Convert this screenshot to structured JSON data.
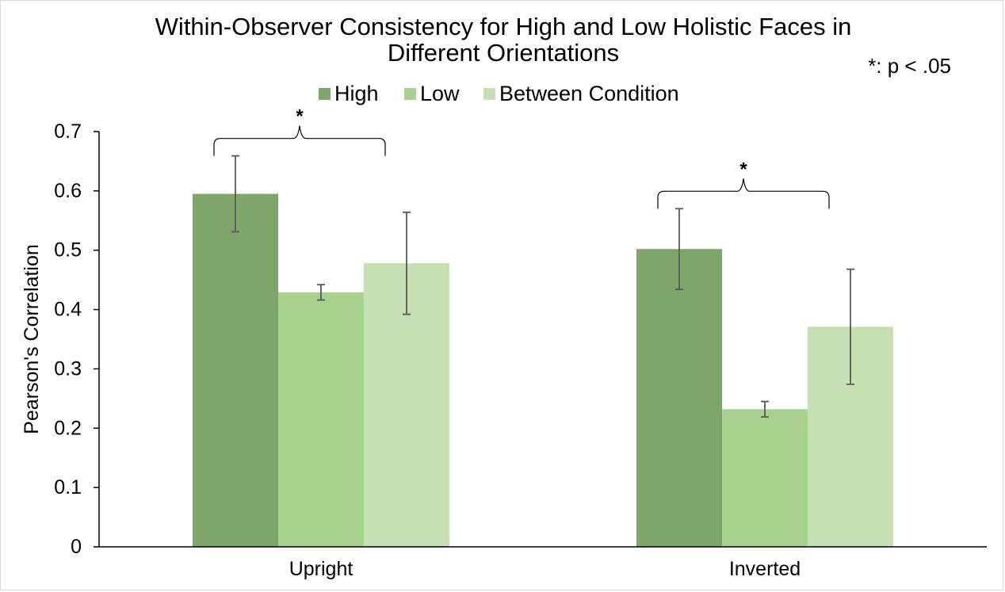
{
  "chart_data": {
    "type": "bar",
    "title_lines": [
      "Within-Observer Consistency for High and Low Holistic Faces in",
      "Different Orientations"
    ],
    "significance_note": "*: p < .05",
    "significance_marker": "*",
    "ylabel": "Pearson's Correlation",
    "xlabel": "",
    "ylim": [
      0,
      0.7
    ],
    "yticks": [
      "0",
      "0.1",
      "0.2",
      "0.3",
      "0.4",
      "0.5",
      "0.6",
      "0.7"
    ],
    "categories": [
      "Upright",
      "Inverted"
    ],
    "series": [
      {
        "name": "High",
        "color": "#80a56a",
        "values": [
          0.595,
          0.502
        ],
        "errors": [
          0.064,
          0.068
        ]
      },
      {
        "name": "Low",
        "color": "#a9d18e",
        "values": [
          0.429,
          0.232
        ],
        "errors": [
          0.013,
          0.013
        ]
      },
      {
        "name": "Between Condition",
        "color": "#c6e0b4",
        "values": [
          0.478,
          0.371
        ],
        "errors": [
          0.086,
          0.097
        ]
      }
    ],
    "significance_brackets": [
      {
        "category": "Upright",
        "from_series": "High",
        "to_series": "Between Condition"
      },
      {
        "category": "Inverted",
        "from_series": "High",
        "to_series": "Between Condition"
      }
    ],
    "legend_position": "top",
    "grid": false
  }
}
